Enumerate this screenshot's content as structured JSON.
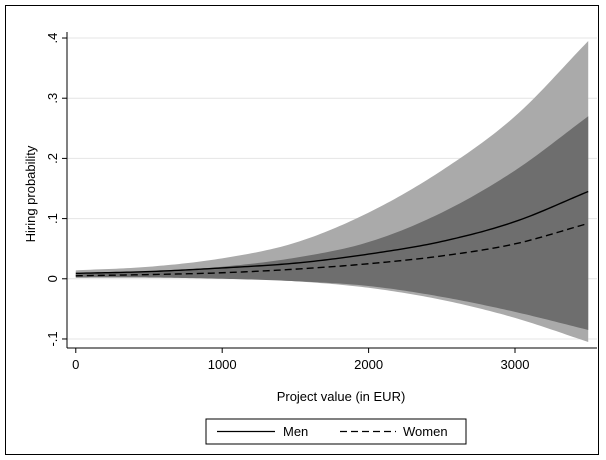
{
  "chart_data": {
    "type": "line",
    "title": "",
    "xlabel": "Project value (in EUR)",
    "ylabel": "Hiring probability",
    "xlim": [
      -60,
      3560
    ],
    "ylim": [
      -0.115,
      0.41
    ],
    "x_ticks": [
      0,
      1000,
      2000,
      3000
    ],
    "x_tick_labels": [
      "0",
      "1000",
      "2000",
      "3000"
    ],
    "y_ticks": [
      -0.1,
      0,
      0.1,
      0.2,
      0.3,
      0.4
    ],
    "y_tick_labels": [
      "-.1",
      "0",
      ".1",
      ".2",
      ".3",
      ".4"
    ],
    "grid": true,
    "legend": {
      "placement": "bottom",
      "entries": [
        "Men",
        "Women"
      ]
    },
    "colors": {
      "outer_band": "#aaaaaa",
      "inner_band": "#6e6e6e",
      "men_line": "#000000",
      "women_line": "#000000",
      "grid": "#e4e4e4"
    },
    "x": [
      0,
      500,
      1000,
      1500,
      2000,
      2500,
      3000,
      3500
    ],
    "series": [
      {
        "name": "Men",
        "style": "solid",
        "values": [
          0.009,
          0.012,
          0.018,
          0.026,
          0.041,
          0.062,
          0.095,
          0.145
        ],
        "ci_upper": [
          0.014,
          0.02,
          0.034,
          0.06,
          0.11,
          0.18,
          0.27,
          0.395
        ],
        "ci_lower": [
          0.004,
          0.004,
          0.002,
          -0.004,
          -0.015,
          -0.035,
          -0.065,
          -0.105
        ]
      },
      {
        "name": "Women",
        "style": "dashed",
        "values": [
          0.005,
          0.007,
          0.01,
          0.016,
          0.025,
          0.038,
          0.058,
          0.092
        ],
        "ci_upper": [
          0.008,
          0.012,
          0.02,
          0.035,
          0.061,
          0.11,
          0.18,
          0.27
        ],
        "ci_lower": [
          0.002,
          0.002,
          0.0,
          -0.004,
          -0.012,
          -0.03,
          -0.055,
          -0.085
        ]
      }
    ]
  }
}
